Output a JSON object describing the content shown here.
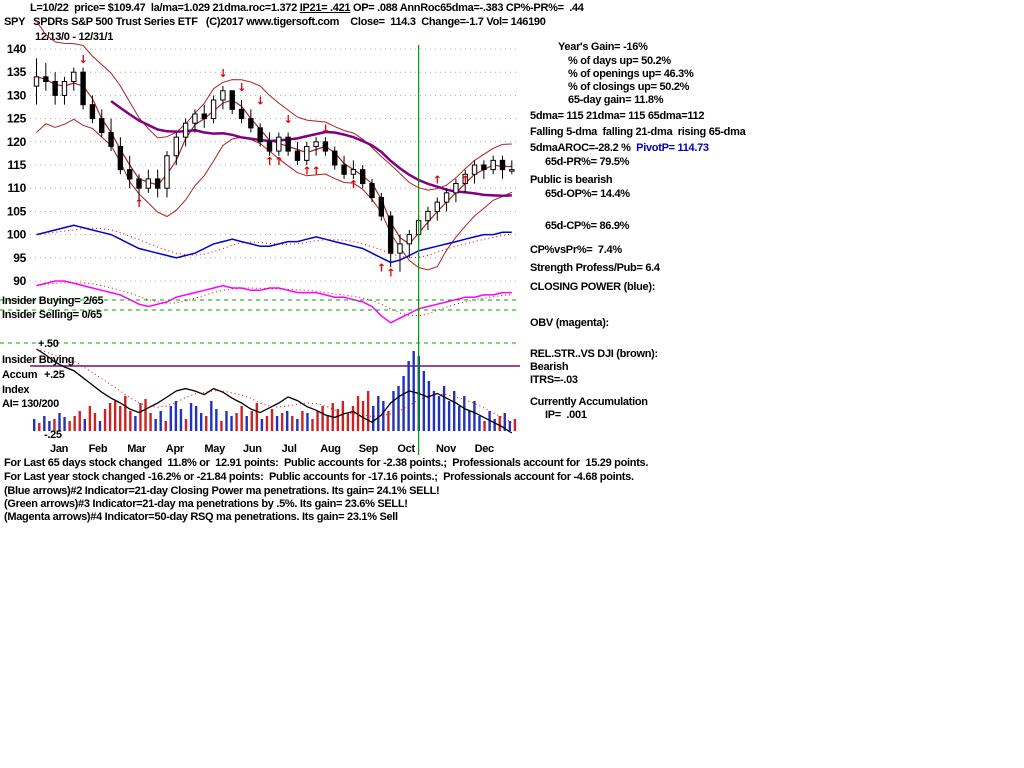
{
  "header": {
    "line1_pre": "L=10/22  price= $109.47  la/ma=1.029 21dma.roc=1.372 ",
    "line1_underline": "IP21= .421",
    "line1_post": " OP= .088 AnnRoc65dma=-.383 CP%-PR%=  .44",
    "line2": "SPY   SPDRs S&P 500 Trust Series ETF   (C)2017 www.tigersoft.com    Close=  114.3  Change=-1.7 Vol= 146190",
    "date_range": "12/13/0 - 12/31/1"
  },
  "left_labels": {
    "insider_buying": "Insider Buying= 2/65",
    "insider_selling": "Insider Selling= 0/65",
    "scale_p50": "+.50",
    "ai_line1": "Insider Buying",
    "ai_line2": "Accum",
    "scale_p25": "+.25",
    "ai_line3": "Index",
    "ai_line4": "AI= 130/200",
    "scale_m25": "-.25"
  },
  "right_panel": {
    "years_gain": "Year's Gain= -16%",
    "days_up": "% of days up= 50.2%",
    "openings_up": "% of openings up= 46.3%",
    "closings_up": "% of closings up= 50.2%",
    "gain_65day": "65-day gain= 11.8%",
    "dmas": "5dma= 115 21dma= 115 65dma=112",
    "dma_trend": "Falling 5-dma  falling 21-dma  rising 65-dma",
    "aroc": "5dmaAROC=-28.2 %  ",
    "pivot": "PivotP= 114.73",
    "pr65": "65d-PR%= 79.5%",
    "public_bearish": "Public is bearish",
    "op65": "65d-OP%= 14.4%",
    "cp65": "65d-CP%= 86.9%",
    "cp_vs_pr": "CP%vsPr%=  7.4%",
    "strength": "Strength Profess/Pub= 6.4",
    "closing_power_label": "CLOSING POWER (blue):",
    "obv_label": "OBV (magenta):",
    "relstr_label": "REL.STR..VS DJI (brown):",
    "relstr_status": "Bearish",
    "itrs": "ITRS=-.03",
    "currently": "Currently Accumulation",
    "ip": "IP=  .001"
  },
  "footer": {
    "line1": "For Last 65 days stock changed  11.8% or  12.91 points:  Public accounts for -2.38 points.;  Professionals account for  15.29 points.",
    "line2": "For Last year stock changed -16.2% or -21.84 points:  Public accounts for -17.16 points.;  Professionals account for -4.68 points.",
    "line3": "(Blue arrows)#2 Indicator=21-day Closing Power ma penetrations. Its gain= 24.1% SELL!",
    "line4": "(Green arrows)#3 Indicator=21-day ma penetrations by .5%. Its gain= 23.6% SELL!",
    "line5": "(Magenta arrows)#4 Indicator=50-day RSQ ma penetrations. Its gain= 23.1% Sell"
  },
  "chart_data": {
    "type": "candlestick",
    "title": "SPY SPDRs S&P 500 Trust Series ETF 12/13/0 - 12/31/1",
    "price_ticks": [
      140,
      135,
      130,
      125,
      120,
      115,
      110,
      105,
      100,
      95,
      90
    ],
    "months": [
      "Jan",
      "Feb",
      "Mar",
      "Apr",
      "May",
      "Jun",
      "Jul",
      "Aug",
      "Sep",
      "Oct",
      "Nov",
      "Dec"
    ],
    "candles": [
      [
        132,
        138,
        128,
        134
      ],
      [
        134,
        137,
        131,
        133
      ],
      [
        133,
        135,
        128,
        130
      ],
      [
        130,
        134,
        128,
        133
      ],
      [
        133,
        136,
        131,
        135
      ],
      [
        135,
        136,
        127,
        128
      ],
      [
        128,
        130,
        124,
        125
      ],
      [
        125,
        127,
        121,
        122
      ],
      [
        122,
        125,
        118,
        119
      ],
      [
        119,
        121,
        113,
        114
      ],
      [
        114,
        117,
        110,
        112
      ],
      [
        112,
        113,
        106,
        110
      ],
      [
        110,
        114,
        109,
        112
      ],
      [
        112,
        114,
        108,
        110
      ],
      [
        110,
        118,
        108,
        117
      ],
      [
        117,
        122,
        115,
        121
      ],
      [
        121,
        125,
        119,
        124
      ],
      [
        124,
        127,
        122,
        126
      ],
      [
        126,
        128,
        123,
        125
      ],
      [
        125,
        130,
        124,
        129
      ],
      [
        129,
        132,
        127,
        131
      ],
      [
        131,
        131,
        126,
        127
      ],
      [
        127,
        129,
        124,
        125
      ],
      [
        125,
        127,
        122,
        123
      ],
      [
        123,
        124,
        119,
        120
      ],
      [
        120,
        122,
        117,
        118
      ],
      [
        118,
        122,
        117,
        121
      ],
      [
        121,
        122,
        117,
        118
      ],
      [
        118,
        120,
        115,
        116
      ],
      [
        116,
        120,
        115,
        119
      ],
      [
        119,
        121,
        117,
        120
      ],
      [
        120,
        121,
        117,
        118
      ],
      [
        118,
        119,
        114,
        115
      ],
      [
        115,
        117,
        112,
        113
      ],
      [
        113,
        116,
        112,
        114
      ],
      [
        114,
        115,
        110,
        111
      ],
      [
        111,
        112,
        107,
        108
      ],
      [
        108,
        109,
        103,
        104
      ],
      [
        104,
        105,
        93,
        96
      ],
      [
        96,
        100,
        92,
        98
      ],
      [
        98,
        101,
        95,
        100
      ],
      [
        100,
        104,
        98,
        103
      ],
      [
        103,
        106,
        101,
        105
      ],
      [
        105,
        108,
        103,
        107
      ],
      [
        107,
        110,
        105,
        109
      ],
      [
        109,
        112,
        107,
        111
      ],
      [
        111,
        114,
        109,
        113
      ],
      [
        113,
        116,
        111,
        115
      ],
      [
        115,
        116,
        112,
        114
      ],
      [
        114,
        117,
        113,
        116
      ],
      [
        116,
        117,
        112,
        114
      ],
      [
        114,
        116,
        113,
        114
      ]
    ],
    "closing_power": [
      100,
      100.5,
      101,
      101.5,
      102,
      101.5,
      101,
      100.5,
      100,
      99,
      98,
      97,
      96.5,
      96,
      95.5,
      95,
      95.5,
      96,
      97,
      98,
      98.5,
      99,
      98.5,
      98,
      97.5,
      97.5,
      98,
      98.5,
      98.5,
      99,
      99.5,
      99,
      98.5,
      98,
      97.5,
      97,
      96,
      95,
      94,
      94.5,
      95.5,
      96.5,
      97,
      97.5,
      98,
      98.5,
      99,
      99.5,
      100,
      100,
      100.5,
      100.5
    ],
    "obv": [
      89,
      89.5,
      90,
      90,
      89.5,
      89,
      88.5,
      88,
      87.5,
      87,
      86,
      85,
      84.5,
      85,
      85.5,
      86.5,
      87,
      87.5,
      88,
      88.5,
      89,
      88.5,
      88.5,
      88,
      88,
      88.5,
      88.5,
      88,
      87.5,
      87.5,
      87.5,
      87,
      86.5,
      86.5,
      86,
      85.5,
      84.5,
      82.5,
      81,
      82,
      83,
      84,
      84.5,
      85,
      85.5,
      86,
      86.5,
      86.5,
      87,
      87,
      87.5,
      87.5
    ],
    "accum_index": [
      0.45,
      0.4,
      0.34,
      0.3,
      0.27,
      0.21,
      0.15,
      0.09,
      0.04,
      0.0,
      -0.05,
      -0.08,
      -0.04,
      0.0,
      0.05,
      0.1,
      0.12,
      0.1,
      0.07,
      0.12,
      0.09,
      0.04,
      0.0,
      -0.05,
      -0.08,
      -0.04,
      0.0,
      0.05,
      0.02,
      -0.03,
      -0.06,
      -0.1,
      -0.12,
      -0.09,
      -0.07,
      -0.12,
      -0.16,
      -0.1,
      0.0,
      0.06,
      0.1,
      0.08,
      0.05,
      0.08,
      0.04,
      0.0,
      -0.05,
      -0.08,
      -0.12,
      -0.16,
      -0.2,
      -0.25
    ],
    "histogram": [
      12,
      -8,
      15,
      10,
      -12,
      18,
      14,
      -10,
      -15,
      -20,
      12,
      -25,
      -18,
      10,
      -22,
      -28,
      -30,
      -25,
      -35,
      -20,
      15,
      -28,
      -32,
      -18,
      12,
      20,
      -10,
      25,
      30,
      22,
      -12,
      28,
      25,
      18,
      -15,
      30,
      22,
      -10,
      20,
      15,
      -18,
      -25,
      15,
      -20,
      -28,
      12,
      -15,
      -22,
      15,
      -18,
      20,
      -15,
      12,
      -20,
      18,
      -12,
      -20,
      -25,
      -15,
      -28,
      -22,
      -30,
      -18,
      -25,
      -35,
      -30,
      -40,
      25,
      35,
      30,
      -20,
      40,
      45,
      55,
      70,
      80,
      75,
      60,
      50,
      40,
      35,
      45,
      30,
      40,
      25,
      35,
      20,
      30,
      15,
      -10,
      20,
      12,
      -15,
      18,
      10,
      -12
    ],
    "arrows": [
      {
        "i": 5,
        "dir": "down",
        "p": 137
      },
      {
        "i": 11,
        "dir": "up",
        "p": 106
      },
      {
        "i": 20,
        "dir": "down",
        "p": 134
      },
      {
        "i": 22,
        "dir": "down",
        "p": 131
      },
      {
        "i": 24,
        "dir": "down",
        "p": 128
      },
      {
        "i": 25,
        "dir": "up",
        "p": 115
      },
      {
        "i": 26,
        "dir": "up",
        "p": 115
      },
      {
        "i": 27,
        "dir": "down",
        "p": 124
      },
      {
        "i": 29,
        "dir": "up",
        "p": 113
      },
      {
        "i": 30,
        "dir": "up",
        "p": 113
      },
      {
        "i": 31,
        "dir": "down",
        "p": 122
      },
      {
        "i": 34,
        "dir": "up",
        "p": 110
      },
      {
        "i": 37,
        "dir": "up",
        "p": 92
      },
      {
        "i": 38,
        "dir": "up",
        "p": 91
      },
      {
        "i": 43,
        "dir": "up",
        "p": 111
      },
      {
        "i": 46,
        "dir": "up",
        "p": 111
      }
    ],
    "vline_week": 41,
    "ai_zero_y_label": "0",
    "colors": {
      "candle": "#000000",
      "band": "#aa2222",
      "ma65": "#800080",
      "closing_power": "#0000cc",
      "obv": "#ff00ff",
      "hist_pos": "#2233bb",
      "hist_neg": "#cc2222",
      "vline": "#009900",
      "grid_green": "#00aa00",
      "zero_line": "#701070",
      "arrow": "#dd0000",
      "dotted": "#dd0000"
    }
  }
}
